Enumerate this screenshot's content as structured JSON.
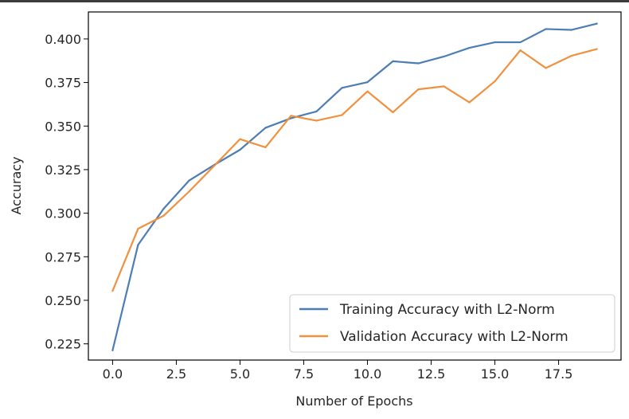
{
  "chart_data": {
    "type": "line",
    "title": "",
    "xlabel": "Number of Epochs",
    "ylabel": "Accuracy",
    "xlim": [
      -0.95,
      19.95
    ],
    "ylim": [
      0.2157,
      0.4155
    ],
    "x_ticks": [
      0.0,
      2.5,
      5.0,
      7.5,
      10.0,
      12.5,
      15.0,
      17.5
    ],
    "x_tick_labels": [
      "0.0",
      "2.5",
      "5.0",
      "7.5",
      "10.0",
      "12.5",
      "15.0",
      "17.5"
    ],
    "y_ticks": [
      0.225,
      0.25,
      0.275,
      0.3,
      0.325,
      0.35,
      0.375,
      0.4
    ],
    "y_tick_labels": [
      "0.225",
      "0.250",
      "0.275",
      "0.300",
      "0.325",
      "0.350",
      "0.375",
      "0.400"
    ],
    "grid": false,
    "legend_position": "lower-right",
    "x": [
      0,
      1,
      2,
      3,
      4,
      5,
      6,
      7,
      8,
      9,
      10,
      11,
      12,
      13,
      14,
      15,
      16,
      17,
      18,
      19
    ],
    "series": [
      {
        "name": "Training Accuracy with L2-Norm",
        "color": "#4c7db5",
        "values": [
          0.2213,
          0.2818,
          0.3025,
          0.3187,
          0.3278,
          0.3364,
          0.349,
          0.3545,
          0.3584,
          0.3719,
          0.3752,
          0.3872,
          0.386,
          0.3899,
          0.3949,
          0.3981,
          0.3981,
          0.4057,
          0.4052,
          0.4088
        ]
      },
      {
        "name": "Validation Accuracy with L2-Norm",
        "color": "#f0913f",
        "values": [
          0.2554,
          0.2911,
          0.2985,
          0.3124,
          0.3274,
          0.3425,
          0.3378,
          0.3559,
          0.3531,
          0.3563,
          0.3699,
          0.3579,
          0.3711,
          0.3728,
          0.3636,
          0.3757,
          0.3935,
          0.3833,
          0.3903,
          0.3942
        ]
      }
    ]
  }
}
